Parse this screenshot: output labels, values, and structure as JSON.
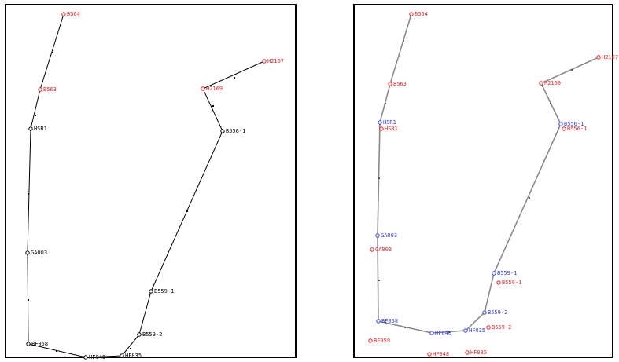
{
  "colors": {
    "left_line": "#000000",
    "right_line": "#8a8a8a",
    "red": "#e8262a",
    "blue": "#2e3de8",
    "black": "#000000"
  },
  "left_panel": {
    "stations": [
      {
        "id": "B564",
        "color": "red"
      },
      {
        "id": "B563",
        "color": "red"
      },
      {
        "id": "HSR1",
        "color": "black"
      },
      {
        "id": "GA003",
        "color": "black"
      },
      {
        "id": "BF058",
        "color": "black"
      },
      {
        "id": "HF048",
        "color": "black"
      },
      {
        "id": "HF035",
        "color": "black"
      },
      {
        "id": "B559-2",
        "color": "black"
      },
      {
        "id": "B559-1",
        "color": "black"
      },
      {
        "id": "B556-1",
        "color": "black"
      },
      {
        "id": "H2169",
        "color": "red"
      },
      {
        "id": "H2167",
        "color": "red"
      }
    ]
  },
  "right_panel": {
    "red_stations": [
      "B564",
      "B563",
      "H2169",
      "H2167",
      "HSR1",
      "B556-1",
      "GA003",
      "B559-1",
      "B559-2",
      "BF059",
      "HF048",
      "HF035"
    ],
    "blue_stations": [
      "HSR1",
      "B556-1",
      "GA003",
      "B559-1",
      "B559-2",
      "BF058",
      "HF048",
      "HF035"
    ]
  }
}
